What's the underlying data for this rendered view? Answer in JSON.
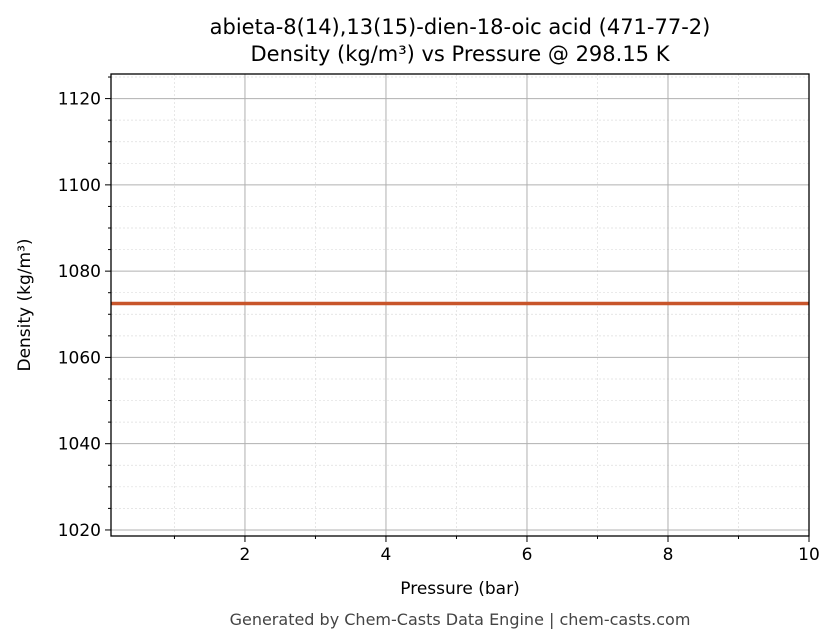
{
  "chart_data": {
    "type": "line",
    "title": "abieta-8(14),13(15)-dien-18-oic acid (471-77-2)",
    "subtitle": "Density (kg/m³) vs Pressure @ 298.15 K",
    "x_label": "Pressure (bar)",
    "y_label": "Density (kg/m³)",
    "footer": "Generated by Chem-Casts Data Engine | chem-casts.com",
    "x": [
      0.1,
      2,
      4,
      6,
      8,
      10
    ],
    "series": [
      {
        "color": "#c8552b",
        "values": [
          1072.5,
          1072.5,
          1072.5,
          1072.5,
          1072.5,
          1072.5
        ]
      }
    ],
    "xlim": [
      0.1,
      10
    ],
    "ylim": [
      1018.6,
      1125.7
    ],
    "xticks": [
      2,
      4,
      6,
      8,
      10
    ],
    "yticks": [
      1020,
      1040,
      1060,
      1080,
      1100,
      1120
    ],
    "xminorticks": [
      1,
      3,
      5,
      7,
      9
    ],
    "yminorticks": [
      1025,
      1030,
      1035,
      1045,
      1050,
      1055,
      1065,
      1070,
      1075,
      1085,
      1090,
      1095,
      1105,
      1110,
      1115,
      1125
    ],
    "grid": true
  }
}
